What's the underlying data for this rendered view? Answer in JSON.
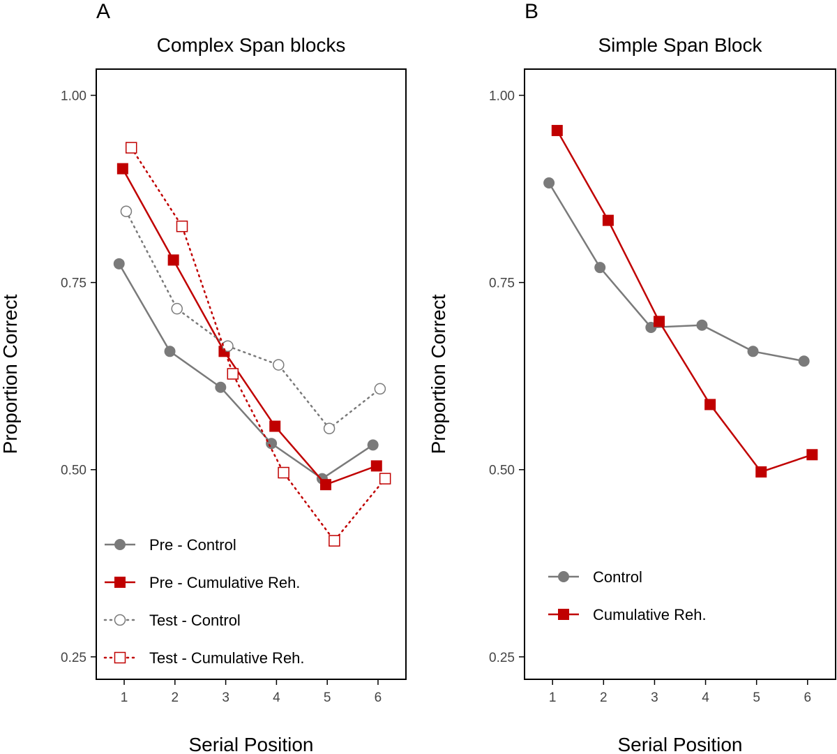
{
  "figure": {
    "colors": {
      "control": "#7a7a7a",
      "cumulative": "#c00000",
      "frame": "#000000"
    }
  },
  "chart_data": [
    {
      "type": "line",
      "panel_label": "A",
      "title": "Complex Span blocks",
      "xlabel": "Serial Position",
      "ylabel": "Proportion Correct",
      "x": [
        1,
        2,
        3,
        4,
        5,
        6
      ],
      "xlim": [
        0.45,
        6.55
      ],
      "ylim": [
        0.22,
        1.035
      ],
      "yticks": [
        1.0,
        0.75,
        0.5,
        0.25
      ],
      "ytick_labels": [
        "1.00",
        "0.75",
        "0.50",
        "0.25"
      ],
      "xtick_labels": [
        "1",
        "2",
        "3",
        "4",
        "5",
        "6"
      ],
      "legend_position": "bottom-left",
      "series": [
        {
          "name": "Pre - Control",
          "values": [
            0.775,
            0.658,
            0.61,
            0.535,
            0.488,
            0.533
          ],
          "color": "#7a7a7a",
          "marker": "circle",
          "fill": "solid",
          "dash": "solid",
          "offset": -0.1
        },
        {
          "name": "Pre - Cumulative Reh.",
          "values": [
            0.902,
            0.78,
            0.658,
            0.558,
            0.48,
            0.505
          ],
          "color": "#c00000",
          "marker": "square",
          "fill": "solid",
          "dash": "solid",
          "offset": -0.03
        },
        {
          "name": "Test - Control",
          "values": [
            0.845,
            0.715,
            0.665,
            0.64,
            0.555,
            0.608
          ],
          "color": "#7a7a7a",
          "marker": "circle",
          "fill": "open",
          "dash": "dotted",
          "offset": 0.04
        },
        {
          "name": "Test - Cumulative Reh.",
          "values": [
            0.93,
            0.825,
            0.628,
            0.496,
            0.405,
            0.488
          ],
          "color": "#c00000",
          "marker": "square",
          "fill": "open",
          "dash": "dotted",
          "offset": 0.14
        }
      ]
    },
    {
      "type": "line",
      "panel_label": "B",
      "title": "Simple Span Block",
      "xlabel": "Serial Position",
      "ylabel": "Proportion Correct",
      "x": [
        1,
        2,
        3,
        4,
        5,
        6
      ],
      "xlim": [
        0.45,
        6.55
      ],
      "ylim": [
        0.22,
        1.035
      ],
      "yticks": [
        1.0,
        0.75,
        0.5,
        0.25
      ],
      "ytick_labels": [
        "1.00",
        "0.75",
        "0.50",
        "0.25"
      ],
      "xtick_labels": [
        "1",
        "2",
        "3",
        "4",
        "5",
        "6"
      ],
      "legend_position": "bottom-left",
      "series": [
        {
          "name": "Control",
          "values": [
            0.883,
            0.77,
            0.69,
            0.693,
            0.658,
            0.645
          ],
          "color": "#7a7a7a",
          "marker": "circle",
          "fill": "solid",
          "dash": "solid",
          "offset": -0.07
        },
        {
          "name": "Cumulative Reh.",
          "values": [
            0.953,
            0.833,
            0.698,
            0.587,
            0.497,
            0.52
          ],
          "color": "#c00000",
          "marker": "square",
          "fill": "solid",
          "dash": "solid",
          "offset": 0.09
        }
      ]
    }
  ]
}
